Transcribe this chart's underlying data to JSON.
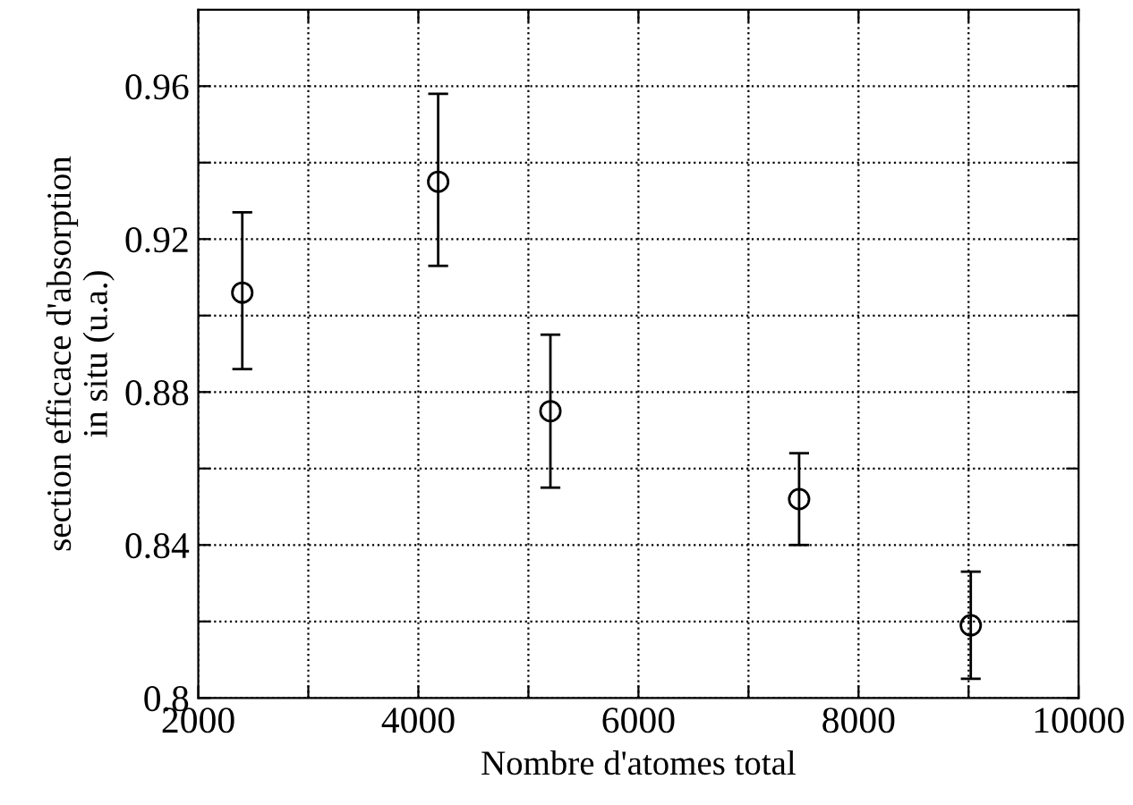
{
  "chart_data": {
    "type": "scatter",
    "xlabel": "Nombre d'atomes total",
    "ylabel": "section efficace d'absorption\nin situ (u.a.)",
    "x": [
      2400,
      4180,
      5200,
      7460,
      9020
    ],
    "series": [
      {
        "color": "#000000",
        "values": [
          0.906,
          0.935,
          0.875,
          0.852,
          0.819
        ],
        "errors": [
          [
            0.886,
            0.927
          ],
          [
            0.913,
            0.958
          ],
          [
            0.855,
            0.895
          ],
          [
            0.84,
            0.864
          ],
          [
            0.805,
            0.833
          ]
        ]
      }
    ],
    "marker": "circle",
    "grid": true,
    "xlim": [
      2000,
      10000
    ],
    "ylim": [
      0.8,
      0.98
    ],
    "xticks": [
      2000,
      {
        "value": 3000,
        "label": null
      },
      4000,
      {
        "value": 5000,
        "label": null
      },
      6000,
      {
        "value": 7000,
        "label": null
      },
      8000,
      {
        "value": 9000,
        "label": null
      },
      10000
    ],
    "yticks": [
      0.8,
      {
        "value": 0.82,
        "label": null
      },
      0.84,
      {
        "value": 0.86,
        "label": null
      },
      0.88,
      {
        "value": 0.9,
        "label": null
      },
      0.92,
      {
        "value": 0.94,
        "label": null
      },
      0.96
    ]
  }
}
